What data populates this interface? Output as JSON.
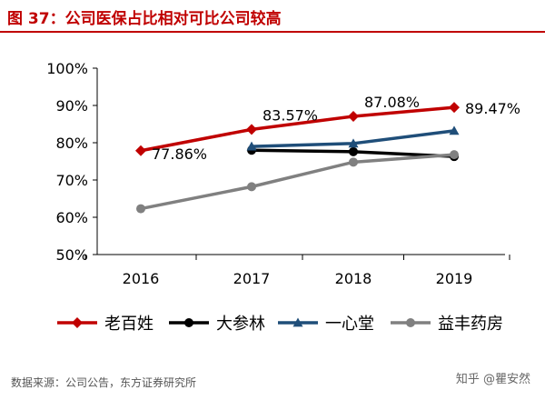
{
  "figure": {
    "title": "图 37：公司医保占比相对可比公司较高",
    "source": "数据来源：公司公告，东方证券研究所",
    "watermark": "知乎 @瞿安然"
  },
  "chart_data": {
    "type": "line",
    "categories": [
      "2016",
      "2017",
      "2018",
      "2019"
    ],
    "ylim": [
      50,
      100
    ],
    "yticks": [
      50,
      60,
      70,
      80,
      90,
      100
    ],
    "ytick_labels": [
      "50%",
      "60%",
      "70%",
      "80%",
      "90%",
      "100%"
    ],
    "grid": false,
    "legend_position": "bottom",
    "series": [
      {
        "name": "老百姓",
        "color": "#c00000",
        "marker": "diamond",
        "values": [
          77.86,
          83.57,
          87.08,
          89.47
        ],
        "labels": [
          "77.86%",
          "83.57%",
          "87.08%",
          "89.47%"
        ]
      },
      {
        "name": "大参林",
        "color": "#000000",
        "marker": "circle",
        "values": [
          null,
          78.0,
          77.6,
          76.3
        ]
      },
      {
        "name": "一心堂",
        "color": "#1f4e79",
        "marker": "triangle",
        "values": [
          null,
          79.0,
          79.8,
          83.2
        ]
      },
      {
        "name": "益丰药房",
        "color": "#808080",
        "marker": "circle",
        "values": [
          62.3,
          68.2,
          74.8,
          76.8
        ]
      }
    ]
  }
}
